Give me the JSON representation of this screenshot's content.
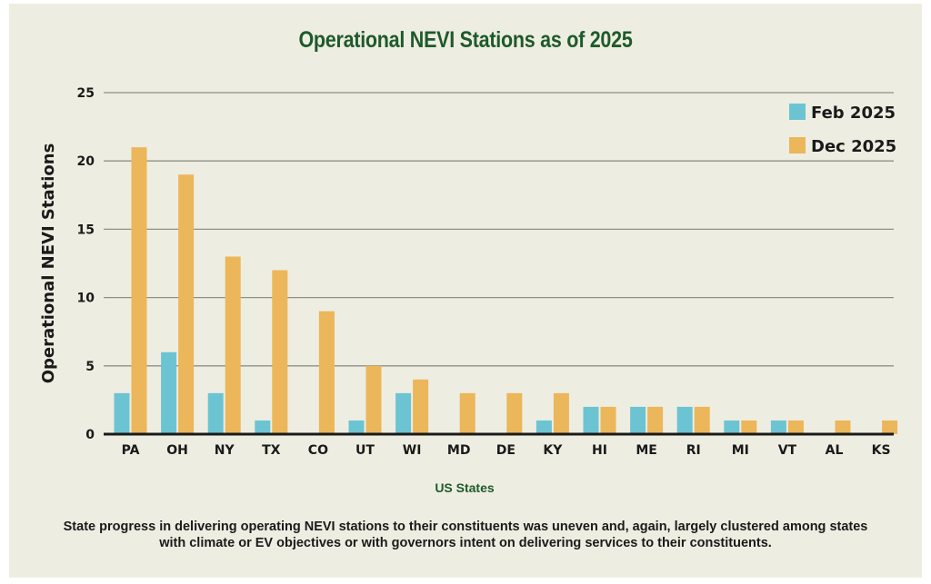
{
  "chart_data": {
    "type": "bar",
    "title": "Operational NEVI Stations as of 2025",
    "xlabel": "US States",
    "ylabel": "Operational NEVI Stations",
    "ylim": [
      0,
      25
    ],
    "yticks": [
      0,
      5,
      10,
      15,
      20,
      25
    ],
    "grid": true,
    "legend_position": "top-right",
    "categories": [
      "PA",
      "OH",
      "NY",
      "TX",
      "CO",
      "UT",
      "WI",
      "MD",
      "DE",
      "KY",
      "HI",
      "ME",
      "RI",
      "MI",
      "VT",
      "AL",
      "KS"
    ],
    "series": [
      {
        "name": "Feb 2025",
        "color": "#6CC4D3",
        "values": [
          3,
          6,
          3,
          1,
          0,
          1,
          3,
          0,
          0,
          1,
          2,
          2,
          2,
          1,
          1,
          0,
          0
        ]
      },
      {
        "name": "Dec 2025",
        "color": "#ECB65A",
        "values": [
          21,
          19,
          13,
          12,
          9,
          5,
          4,
          3,
          3,
          3,
          2,
          2,
          2,
          1,
          1,
          1,
          1
        ]
      }
    ]
  },
  "caption": "State progress in delivering operating NEVI stations to their constituents was uneven and, again, largely clustered among states with climate or EV objectives or with governors intent on delivering services to their constituents."
}
